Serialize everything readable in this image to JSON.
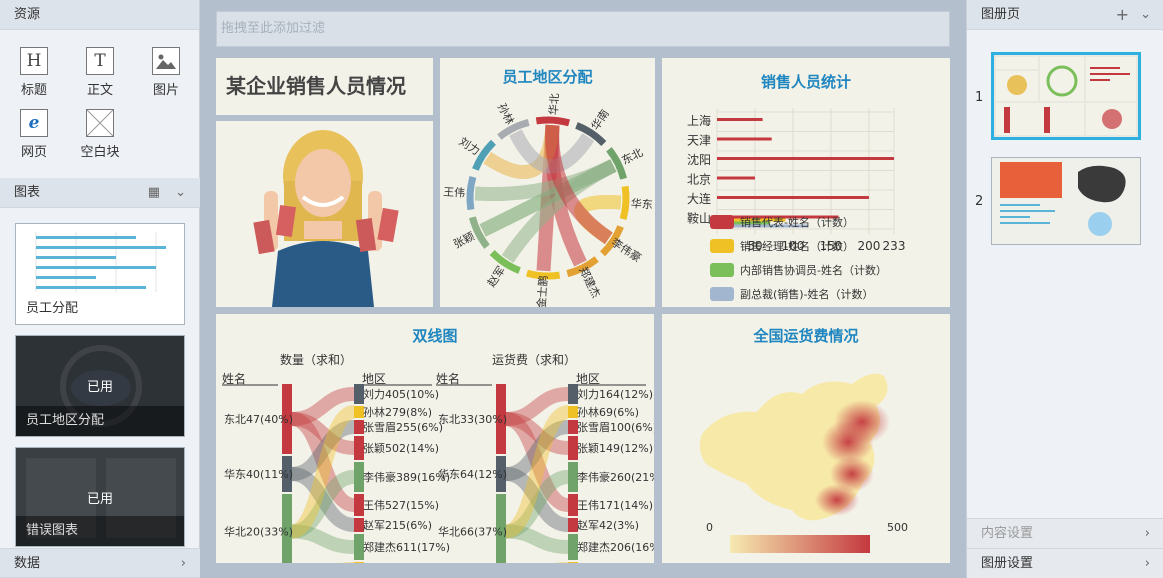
{
  "left": {
    "resources_title": "资源",
    "resources": [
      {
        "label": "标题",
        "glyph": "H",
        "icon": "heading-icon"
      },
      {
        "label": "正文",
        "glyph": "T",
        "icon": "text-icon"
      },
      {
        "label": "图片",
        "glyph": "▲",
        "icon": "image-icon"
      },
      {
        "label": "网页",
        "glyph": "e",
        "icon": "web-icon"
      },
      {
        "label": "空白块",
        "glyph": "",
        "icon": "blank-block-icon"
      }
    ],
    "charts_title": "图表",
    "charts": [
      {
        "label": "员工分配",
        "used": ""
      },
      {
        "label": "员工地区分配",
        "used": "已用"
      },
      {
        "label": "错误图表",
        "used": "已用"
      }
    ],
    "data_title": "数据"
  },
  "filter": {
    "placeholder": "拖拽至此添加过滤"
  },
  "panels": {
    "title_text": "某企业销售人员情况",
    "chord": {
      "title": "员工地区分配",
      "names": [
        "华北",
        "华南",
        "东北",
        "华东",
        "李伟豪",
        "郑建杰",
        "金士鹏",
        "赵军",
        "张颖",
        "王伟",
        "刘力",
        "孙林"
      ]
    },
    "bar": {
      "title": "销售人员统计",
      "cities": [
        "上海",
        "天津",
        "沈阳",
        "北京",
        "大连",
        "鞍山"
      ],
      "ticks": [
        "0",
        "50",
        "100",
        "150",
        "200",
        "233"
      ],
      "legend": [
        "销售代表-姓名（计数）",
        "销售经理-姓名（计数）",
        "内部销售协调员-姓名（计数）",
        "副总裁(销售)-姓名（计数）"
      ],
      "legend_colors": [
        "#c4393f",
        "#efc125",
        "#7bbf5b",
        "#a3b6cf"
      ]
    },
    "dual": {
      "title": "双线图",
      "left_measure": "数量（求和）",
      "right_measure": "运货费（求和）",
      "name_header": "姓名",
      "region_header": "地区",
      "left_names": [
        "东北47(40%)",
        "华东40(11%)",
        "华北20(33%)",
        "华南56(15%)"
      ],
      "right_names_left": [
        "刘力405(10%)",
        "孙林279(8%)",
        "张雪眉255(6%)",
        "张颖502(14%)",
        "李伟豪389(16%)",
        "王伟527(15%)",
        "赵军215(6%)",
        "郑建杰611(17%)",
        "金士鹏282(8%)"
      ],
      "left_names2": [
        "东北33(30%)",
        "华东64(12%)",
        "华北66(37%)",
        "华南92(15%)"
      ],
      "right_names_right": [
        "刘力164(12%)",
        "孙林69(6%)",
        "张雪眉100(6%)",
        "张颖149(12%)",
        "李伟豪260(21%)",
        "王伟171(14%)",
        "赵军42(3%)",
        "郑建杰206(16%)",
        "金士鹏224(10%)"
      ]
    },
    "map": {
      "title": "全国运货费情况",
      "min": "0",
      "max": "500"
    }
  },
  "right": {
    "pages_title": "图册页",
    "add": "+",
    "pages": [
      "1",
      "2"
    ],
    "content_settings": "内容设置",
    "album_settings": "图册设置"
  },
  "chart_data": [
    {
      "type": "bar",
      "title": "销售人员统计",
      "categories": [
        "上海",
        "天津",
        "沈阳",
        "北京",
        "大连",
        "鞍山"
      ],
      "xlim": [
        0,
        233
      ],
      "series": [
        {
          "name": "销售代表-姓名（计数）",
          "values": [
            60,
            72,
            233,
            50,
            200,
            160
          ]
        },
        {
          "name": "销售经理-姓名（计数）",
          "values": [
            0,
            0,
            0,
            0,
            0,
            90
          ]
        },
        {
          "name": "内部销售协调员-姓名（计数）",
          "values": [
            0,
            0,
            0,
            0,
            0,
            70
          ]
        },
        {
          "name": "副总裁(销售)-姓名（计数）",
          "values": [
            0,
            0,
            0,
            0,
            0,
            120
          ]
        }
      ]
    }
  ]
}
